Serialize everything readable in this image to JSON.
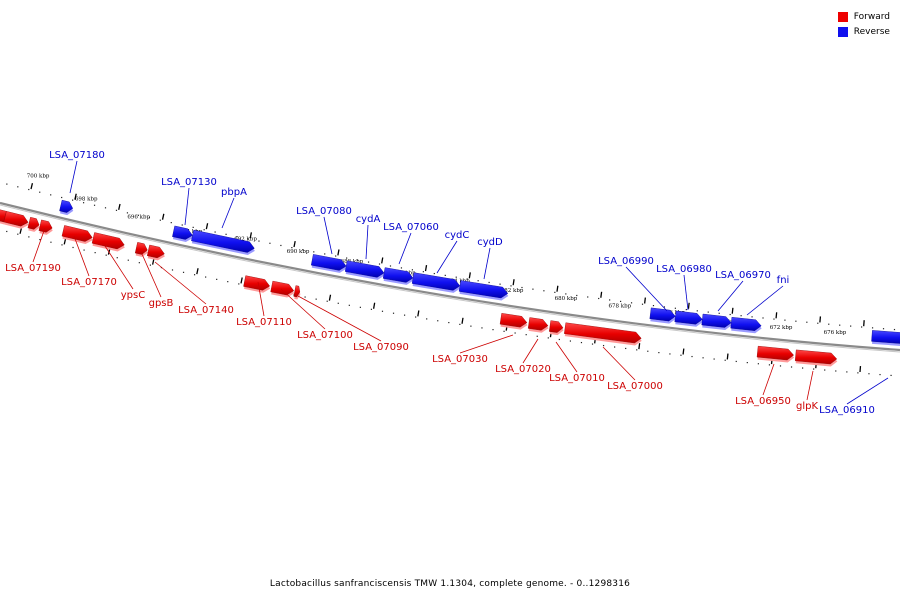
{
  "legend": [
    {
      "label": "Forward",
      "color": "#ee0000"
    },
    {
      "label": "Reverse",
      "color": "#1010ee"
    }
  ],
  "caption": "Lactobacillus sanfranciscensis TMW 1.1304, complete genome. - 0..1298316",
  "colors": {
    "forward": "#ee0000",
    "reverse": "#1010ee",
    "backbone": "#888888",
    "label_forward": "#cc0000",
    "label_reverse": "#0000cc"
  },
  "ticks": [
    "700 kbp",
    "698 kbp",
    "696 kbp",
    "694 kbp",
    "692 kbp",
    "690 kbp",
    "688 kbp",
    "686 kbp",
    "684 kbp",
    "682 kbp",
    "680 kbp",
    "678 kbp",
    "676 kbp",
    "674 kbp",
    "672 kbp",
    "676 kbp"
  ],
  "genes_forward": [
    {
      "label": "LSA_07190"
    },
    {
      "label": "LSA_07170"
    },
    {
      "label": "ypsC"
    },
    {
      "label": "gpsB"
    },
    {
      "label": "LSA_07140"
    },
    {
      "label": "LSA_07110"
    },
    {
      "label": "LSA_07100"
    },
    {
      "label": "LSA_07090"
    },
    {
      "label": "LSA_07030"
    },
    {
      "label": "LSA_07020"
    },
    {
      "label": "LSA_07010"
    },
    {
      "label": "LSA_07000"
    },
    {
      "label": "LSA_06950"
    },
    {
      "label": "glpK"
    }
  ],
  "genes_reverse": [
    {
      "label": "LSA_07180"
    },
    {
      "label": "LSA_07130"
    },
    {
      "label": "pbpA"
    },
    {
      "label": "LSA_07080"
    },
    {
      "label": "cydA"
    },
    {
      "label": "LSA_07060"
    },
    {
      "label": "cydC"
    },
    {
      "label": "cydD"
    },
    {
      "label": "LSA_06990"
    },
    {
      "label": "LSA_06980"
    },
    {
      "label": "LSA_06970"
    },
    {
      "label": "fni"
    },
    {
      "label": "LSA_06910"
    }
  ]
}
